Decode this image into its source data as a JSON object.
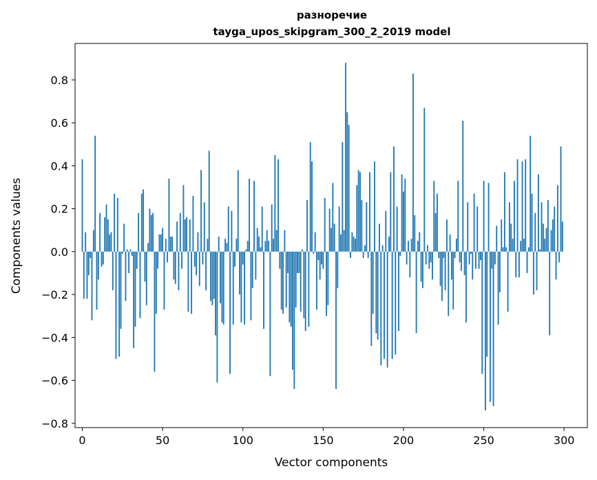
{
  "chart_data": {
    "type": "bar",
    "title": "разноречие",
    "subtitle": "tayga_upos_skipgram_300_2_2019 model",
    "xlabel": "Vector components",
    "ylabel": "Components values",
    "xlim": [
      -4.5,
      314.5
    ],
    "ylim": [
      -0.82,
      0.97
    ],
    "xticks": [
      0,
      50,
      100,
      150,
      200,
      250,
      300
    ],
    "yticks": [
      -0.8,
      -0.6,
      -0.4,
      -0.2,
      0.0,
      0.2,
      0.4,
      0.6,
      0.8
    ],
    "xtick_labels": [
      "0",
      "50",
      "100",
      "150",
      "200",
      "250",
      "300"
    ],
    "ytick_labels": [
      "−0.8",
      "−0.6",
      "−0.4",
      "−0.2",
      "0.0",
      "0.2",
      "0.4",
      "0.6",
      "0.8"
    ],
    "grid": false,
    "bar_color": "#1f77b4",
    "x": [
      0,
      1,
      2,
      3,
      4,
      5,
      6,
      7,
      8,
      9,
      10,
      11,
      12,
      13,
      14,
      15,
      16,
      17,
      18,
      19,
      20,
      21,
      22,
      23,
      24,
      25,
      26,
      27,
      28,
      29,
      30,
      31,
      32,
      33,
      34,
      35,
      36,
      37,
      38,
      39,
      40,
      41,
      42,
      43,
      44,
      45,
      46,
      47,
      48,
      49,
      50,
      51,
      52,
      53,
      54,
      55,
      56,
      57,
      58,
      59,
      60,
      61,
      62,
      63,
      64,
      65,
      66,
      67,
      68,
      69,
      70,
      71,
      72,
      73,
      74,
      75,
      76,
      77,
      78,
      79,
      80,
      81,
      82,
      83,
      84,
      85,
      86,
      87,
      88,
      89,
      90,
      91,
      92,
      93,
      94,
      95,
      96,
      97,
      98,
      99,
      100,
      101,
      102,
      103,
      104,
      105,
      106,
      107,
      108,
      109,
      110,
      111,
      112,
      113,
      114,
      115,
      116,
      117,
      118,
      119,
      120,
      121,
      122,
      123,
      124,
      125,
      126,
      127,
      128,
      129,
      130,
      131,
      132,
      133,
      134,
      135,
      136,
      137,
      138,
      139,
      140,
      141,
      142,
      143,
      144,
      145,
      146,
      147,
      148,
      149,
      150,
      151,
      152,
      153,
      154,
      155,
      156,
      157,
      158,
      159,
      160,
      161,
      162,
      163,
      164,
      165,
      166,
      167,
      168,
      169,
      170,
      171,
      172,
      173,
      174,
      175,
      176,
      177,
      178,
      179,
      180,
      181,
      182,
      183,
      184,
      185,
      186,
      187,
      188,
      189,
      190,
      191,
      192,
      193,
      194,
      195,
      196,
      197,
      198,
      199,
      200,
      201,
      202,
      203,
      204,
      205,
      206,
      207,
      208,
      209,
      210,
      211,
      212,
      213,
      214,
      215,
      216,
      217,
      218,
      219,
      220,
      221,
      222,
      223,
      224,
      225,
      226,
      227,
      228,
      229,
      230,
      231,
      232,
      233,
      234,
      235,
      236,
      237,
      238,
      239,
      240,
      241,
      242,
      243,
      244,
      245,
      246,
      247,
      248,
      249,
      250,
      251,
      252,
      253,
      254,
      255,
      256,
      257,
      258,
      259,
      260,
      261,
      262,
      263,
      264,
      265,
      266,
      267,
      268,
      269,
      270,
      271,
      272,
      273,
      274,
      275,
      276,
      277,
      278,
      279,
      280,
      281,
      282,
      283,
      284,
      285,
      286,
      287,
      288,
      289,
      290,
      291,
      292,
      293,
      294,
      295,
      296,
      297,
      298,
      299
    ],
    "values": [
      0.43,
      -0.22,
      0.09,
      -0.22,
      -0.11,
      -0.03,
      -0.32,
      0.1,
      0.54,
      -0.27,
      -0.13,
      0.18,
      -0.07,
      -0.06,
      0.16,
      0.22,
      0.15,
      0.08,
      0.09,
      -0.18,
      0.27,
      -0.5,
      0.25,
      -0.49,
      -0.36,
      -0.01,
      0.13,
      -0.23,
      0.01,
      -0.1,
      0.01,
      -0.02,
      -0.45,
      -0.35,
      -0.08,
      0.18,
      -0.31,
      0.27,
      0.29,
      -0.14,
      -0.25,
      0.04,
      0.2,
      0.17,
      0.18,
      -0.56,
      -0.29,
      -0.08,
      0.08,
      0.08,
      0.11,
      -0.27,
      0.06,
      -0.05,
      0.34,
      0.07,
      0.07,
      -0.13,
      -0.15,
      0.14,
      -0.18,
      0.18,
      -0.08,
      0.31,
      0.15,
      0.16,
      -0.28,
      0.15,
      -0.29,
      0.26,
      -0.07,
      -0.11,
      0.09,
      -0.16,
      0.38,
      -0.06,
      0.23,
      -0.18,
      0.06,
      0.47,
      -0.23,
      -0.25,
      -0.22,
      -0.39,
      -0.61,
      0.07,
      -0.24,
      -0.33,
      -0.34,
      0.06,
      0.04,
      0.21,
      -0.57,
      0.19,
      -0.34,
      -0.07,
      0.06,
      0.38,
      -0.2,
      -0.33,
      -0.06,
      -0.34,
      0.01,
      0.05,
      0.34,
      -0.32,
      -0.17,
      0.33,
      -0.13,
      0.11,
      0.07,
      0.02,
      0.21,
      -0.36,
      0.05,
      0.1,
      0.05,
      -0.58,
      0.22,
      0.06,
      0.45,
      0.1,
      0.43,
      -0.08,
      -0.27,
      -0.29,
      0.1,
      -0.26,
      -0.1,
      -0.33,
      -0.35,
      -0.55,
      -0.64,
      -0.26,
      -0.1,
      -0.1,
      -0.28,
      0.01,
      -0.31,
      -0.37,
      0.24,
      -0.35,
      0.51,
      0.42,
      -0.01,
      0.09,
      -0.27,
      -0.04,
      -0.13,
      -0.06,
      -0.08,
      0.25,
      -0.3,
      -0.25,
      0.2,
      0.11,
      0.32,
      0.13,
      -0.64,
      -0.17,
      0.21,
      0.08,
      0.51,
      0.1,
      0.88,
      0.65,
      0.59,
      -0.03,
      0.09,
      0.07,
      0.06,
      0.31,
      0.38,
      0.37,
      0.24,
      -0.03,
      0.03,
      0.23,
      -0.03,
      0.37,
      -0.44,
      -0.29,
      0.42,
      -0.38,
      -0.41,
      0.13,
      -0.53,
      0.03,
      -0.5,
      0.19,
      -0.54,
      0.07,
      0.37,
      -0.5,
      0.49,
      -0.48,
      0.21,
      -0.37,
      -0.02,
      0.36,
      0.28,
      0.34,
      -0.06,
      0.05,
      -0.12,
      0.06,
      0.83,
      0.17,
      -0.38,
      0.05,
      0.09,
      -0.14,
      -0.17,
      0.67,
      -0.06,
      0.03,
      -0.08,
      -0.05,
      -0.13,
      0.33,
      0.18,
      0.27,
      -0.03,
      -0.16,
      -0.23,
      -0.03,
      -0.18,
      0.15,
      -0.3,
      0.08,
      -0.13,
      -0.27,
      -0.03,
      0.06,
      0.33,
      -0.05,
      -0.09,
      0.61,
      -0.11,
      -0.33,
      0.23,
      -0.06,
      -0.01,
      -0.13,
      0.27,
      -0.08,
      0.21,
      -0.08,
      -0.04,
      -0.57,
      0.33,
      -0.74,
      -0.49,
      0.32,
      -0.7,
      -0.08,
      -0.72,
      -0.06,
      0.12,
      -0.34,
      -0.19,
      0.15,
      0.02,
      0.37,
      0.02,
      -0.28,
      0.23,
      0.13,
      0.06,
      0.33,
      -0.12,
      0.43,
      -0.12,
      0.05,
      0.42,
      0.06,
      0.43,
      -0.1,
      0.02,
      0.54,
      0.27,
      -0.2,
      0.18,
      -0.18,
      0.36,
      0.01,
      0.23,
      0.13,
      0.06,
      0.11,
      0.24,
      -0.39,
      0.1,
      0.15,
      0.21,
      -0.13,
      0.31,
      -0.05,
      0.49,
      0.14
    ]
  }
}
